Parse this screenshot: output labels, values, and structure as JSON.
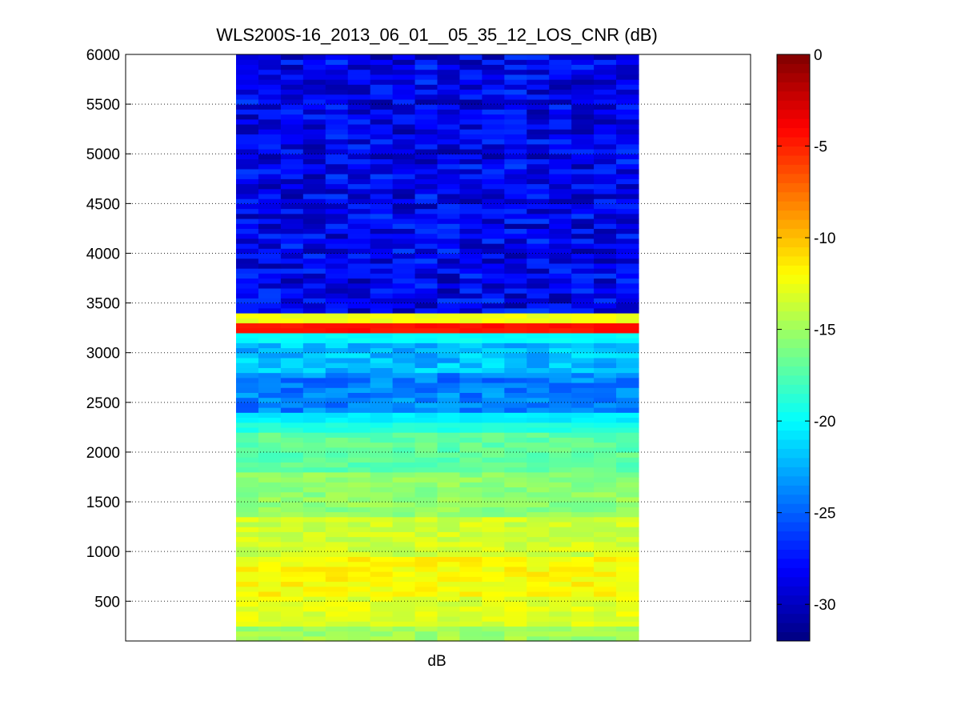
{
  "chart_data": {
    "type": "heatmap",
    "title": "WLS200S-16_2013_06_01__05_35_12_LOS_CNR (dB)",
    "xlabel": "dB",
    "ylabel": "",
    "ylim": [
      100,
      6000
    ],
    "grid": "horizontal dotted",
    "colormap": "jet",
    "y_ticks": [
      500,
      1000,
      1500,
      2000,
      2500,
      3000,
      3500,
      4000,
      4500,
      5000,
      5500,
      6000
    ],
    "y_tick_labels": [
      "500",
      "1000",
      "1500",
      "2000",
      "2500",
      "3000",
      "3500",
      "4000",
      "4500",
      "5000",
      "5500",
      "6000"
    ],
    "colorbar": {
      "range": [
        -32,
        0
      ],
      "ticks": [
        0,
        -5,
        -10,
        -15,
        -20,
        -25,
        -30
      ],
      "tick_labels": [
        "0",
        "-5",
        "-10",
        "-15",
        "-20",
        "-25",
        "-30"
      ]
    },
    "columns": 18,
    "range_bands": [
      {
        "from": 100,
        "to": 250,
        "value_db": -15
      },
      {
        "from": 250,
        "to": 550,
        "value_db": -13
      },
      {
        "from": 550,
        "to": 950,
        "value_db": -12
      },
      {
        "from": 950,
        "to": 1350,
        "value_db": -13.5
      },
      {
        "from": 1350,
        "to": 1800,
        "value_db": -15.5
      },
      {
        "from": 1800,
        "to": 2200,
        "value_db": -17
      },
      {
        "from": 2200,
        "to": 2300,
        "value_db": -19
      },
      {
        "from": 2300,
        "to": 2400,
        "value_db": -20.5
      },
      {
        "from": 2400,
        "to": 2800,
        "value_db": -24
      },
      {
        "from": 2800,
        "to": 3100,
        "value_db": -22
      },
      {
        "from": 3100,
        "to": 3200,
        "value_db": -20
      },
      {
        "from": 3200,
        "to": 3300,
        "value_db": -4.5
      },
      {
        "from": 3300,
        "to": 3400,
        "value_db": -12.5
      },
      {
        "from": 3400,
        "to": 6000,
        "value_db": -28.5
      }
    ]
  }
}
